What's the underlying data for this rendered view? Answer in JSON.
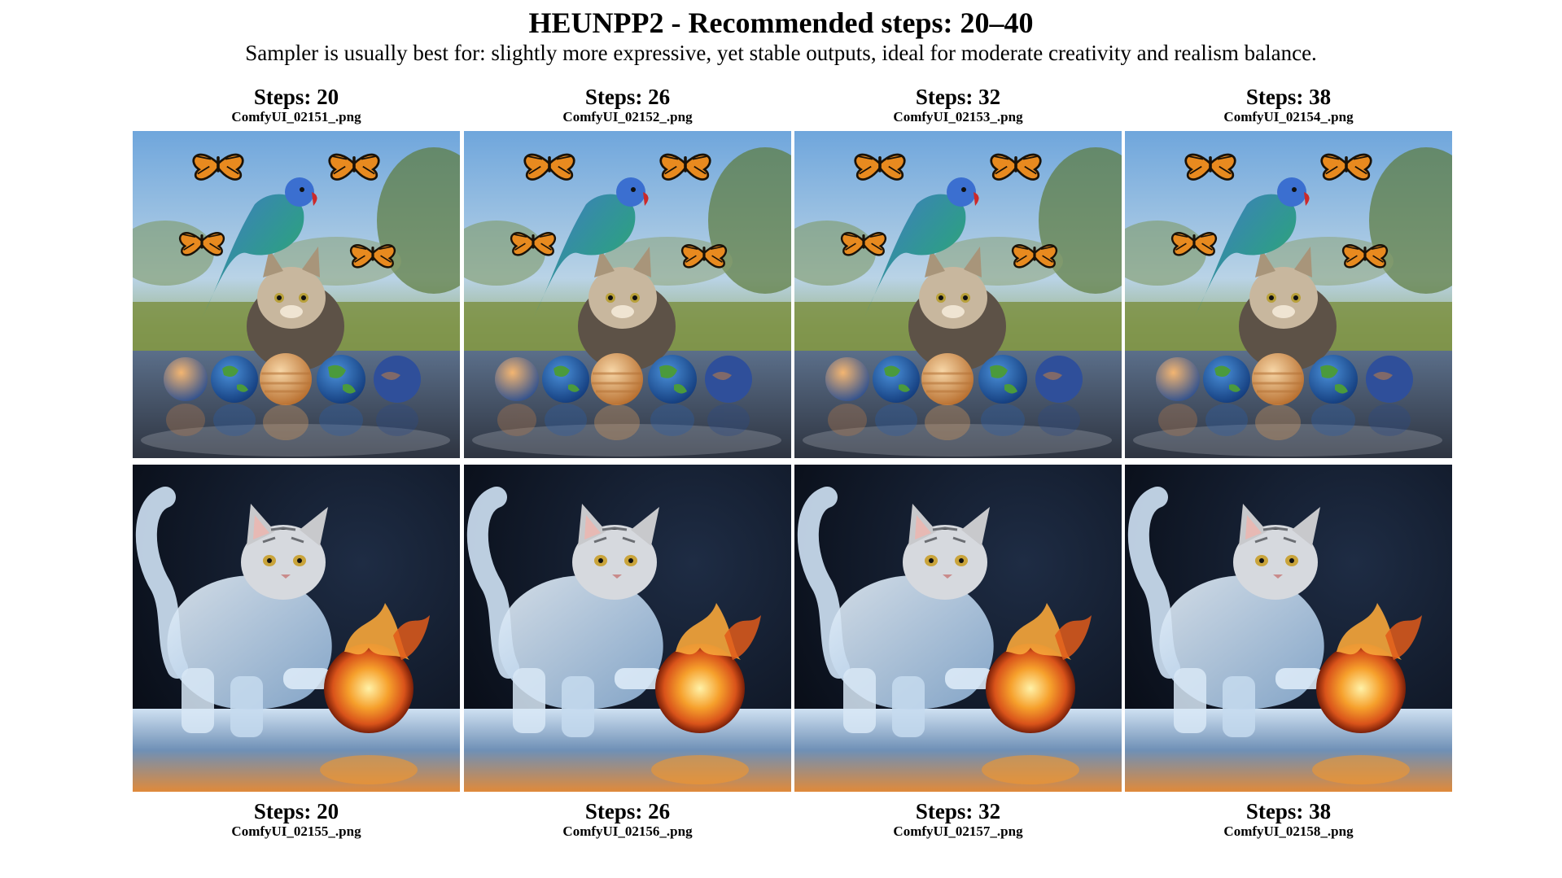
{
  "header": {
    "title": "HEUNPP2 - Recommended steps: 20–40",
    "subtitle": "Sampler is usually best for: slightly more expressive, yet stable outputs, ideal for moderate creativity and realism balance."
  },
  "top_row": [
    {
      "steps_label": "Steps: 20",
      "filename": "ComfyUI_02151_.png"
    },
    {
      "steps_label": "Steps: 26",
      "filename": "ComfyUI_02152_.png"
    },
    {
      "steps_label": "Steps: 32",
      "filename": "ComfyUI_02153_.png"
    },
    {
      "steps_label": "Steps: 38",
      "filename": "ComfyUI_02154_.png"
    }
  ],
  "bottom_row": [
    {
      "steps_label": "Steps: 20",
      "filename": "ComfyUI_02155_.png"
    },
    {
      "steps_label": "Steps: 26",
      "filename": "ComfyUI_02156_.png"
    },
    {
      "steps_label": "Steps: 32",
      "filename": "ComfyUI_02157_.png"
    },
    {
      "steps_label": "Steps: 38",
      "filename": "ComfyUI_02158_.png"
    }
  ],
  "images": {
    "top_scene": "cat with parrot, butterflies and planet spheres in puddle",
    "bottom_scene": "ice cat batting a fire ball"
  }
}
